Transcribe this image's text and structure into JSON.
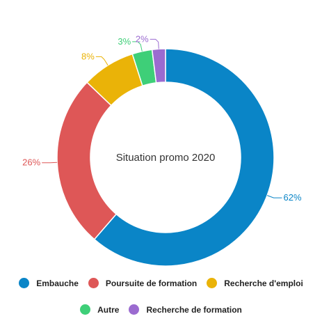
{
  "chart_data": {
    "type": "pie",
    "title": "Situation promo 2020",
    "categories": [
      "Embauche",
      "Poursuite de formation",
      "Recherche d'emploi",
      "Autre",
      "Recherche de formation"
    ],
    "values": [
      62,
      26,
      8,
      3,
      2
    ],
    "value_labels": [
      "62%",
      "26%",
      "8%",
      "3%",
      "2%"
    ],
    "colors": [
      "#0a85c7",
      "#de5757",
      "#eab308",
      "#3ecf78",
      "#9b6bd0"
    ],
    "legend": "bottom",
    "legend_rows": [
      [
        "Embauche",
        "Poursuite de formation",
        "Recherche d'emploi"
      ],
      [
        "Autre",
        "Recherche de formation"
      ]
    ]
  }
}
